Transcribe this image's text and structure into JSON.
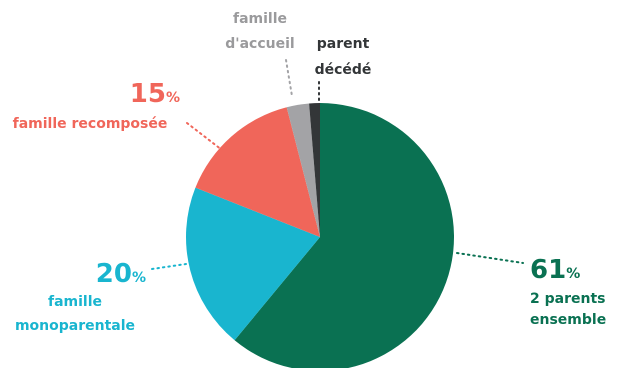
{
  "chart_data": {
    "type": "pie",
    "title": "",
    "slices": [
      {
        "key": "two-parents",
        "value": 61,
        "pct_number": "61",
        "pct_sign": "%",
        "label_lines": [
          "2 parents",
          "ensemble"
        ],
        "color": "#0a7152"
      },
      {
        "key": "single-parent",
        "value": 20,
        "pct_number": "20",
        "pct_sign": "%",
        "label_lines": [
          "famille",
          "monoparentale"
        ],
        "color": "#19b5cf"
      },
      {
        "key": "blended",
        "value": 15,
        "pct_number": "15",
        "pct_sign": "%",
        "label_lines": [
          "famille recomposée"
        ],
        "color": "#f0665a"
      },
      {
        "key": "foster",
        "value": 2.7,
        "pct_number": "",
        "pct_sign": "",
        "label_lines": [
          "famille",
          "d'accueil"
        ],
        "color": "#a3a3a6"
      },
      {
        "key": "deceased-parent",
        "value": 1.3,
        "pct_number": "",
        "pct_sign": "",
        "label_lines": [
          "parent",
          "décédé"
        ],
        "color": "#333638"
      }
    ],
    "start_angle_deg": 0,
    "direction": "clockwise",
    "legend": "none"
  }
}
